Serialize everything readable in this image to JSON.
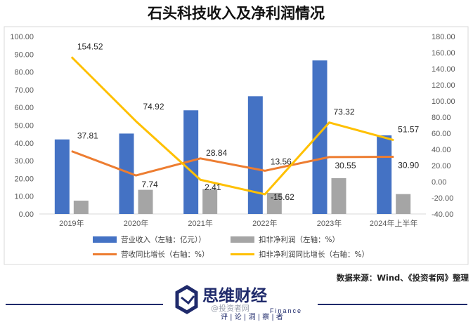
{
  "chart_data": {
    "type": "bar",
    "title": "石头科技收入及净利润情况",
    "categories": [
      "2019年",
      "2020年",
      "2021年",
      "2022年",
      "2023年",
      "2024年上半年"
    ],
    "left_axis": {
      "ylim": [
        0,
        100
      ],
      "ticks": [
        "0.00",
        "10.00",
        "20.00",
        "30.00",
        "40.00",
        "50.00",
        "60.00",
        "70.00",
        "80.00",
        "90.00",
        "100.00"
      ]
    },
    "right_axis": {
      "ylim": [
        -40,
        180
      ],
      "ticks": [
        "-40.00",
        "-20.00",
        "0.00",
        "20.00",
        "40.00",
        "60.00",
        "80.00",
        "100.00",
        "120.00",
        "140.00",
        "160.00",
        "180.00"
      ]
    },
    "series": [
      {
        "name": "营业收入（左轴：亿元））",
        "type": "bar",
        "axis": "left",
        "color": "#4472c4",
        "values": [
          42.0,
          45.3,
          58.4,
          66.3,
          86.5,
          44.3
        ]
      },
      {
        "name": "扣非净利润（左轴：%）",
        "type": "bar",
        "axis": "left",
        "color": "#a5a5a5",
        "values": [
          7.5,
          13.6,
          14.0,
          11.9,
          20.2,
          11.2
        ]
      },
      {
        "name": "营收同比增长（右轴：%）",
        "type": "line",
        "axis": "right",
        "color": "#ed7d31",
        "values": [
          37.81,
          7.74,
          28.84,
          13.56,
          30.55,
          30.9
        ],
        "labels": [
          "37.81",
          "7.74",
          "28.84",
          "13.56",
          "30.55",
          "30.90"
        ]
      },
      {
        "name": "扣非净利润同比增长（右轴：%）",
        "type": "line",
        "axis": "right",
        "color": "#ffc000",
        "values": [
          154.52,
          74.92,
          2.41,
          -15.62,
          73.32,
          51.57
        ],
        "labels": [
          "154.52",
          "74.92",
          "2.41",
          "-15.62",
          "73.32",
          "51.57"
        ]
      }
    ],
    "legend_position": "bottom",
    "grid": false
  },
  "source_note": "数据来源：Wind、《投资者网》整理",
  "brand": {
    "name": "思维财经",
    "english": "Finance",
    "slogan": "评 | 论 | 洞 | 察 | 者",
    "accent_color": "#1f2a6b"
  },
  "watermark": "@投资者网"
}
